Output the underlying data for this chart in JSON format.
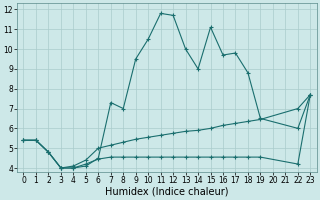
{
  "xlabel": "Humidex (Indice chaleur)",
  "bg_color": "#cde8e8",
  "grid_color": "#aacccc",
  "line_color": "#1a6e6e",
  "xlim": [
    -0.5,
    23.5
  ],
  "ylim": [
    3.8,
    12.3
  ],
  "yticks": [
    4,
    5,
    6,
    7,
    8,
    9,
    10,
    11,
    12
  ],
  "xticks": [
    0,
    1,
    2,
    3,
    4,
    5,
    6,
    7,
    8,
    9,
    10,
    11,
    12,
    13,
    14,
    15,
    16,
    17,
    18,
    19,
    20,
    21,
    22,
    23
  ],
  "line1_x": [
    0,
    1,
    2,
    3,
    4,
    5,
    6,
    7,
    8,
    9,
    10,
    11,
    12,
    13,
    14,
    15,
    16,
    17,
    18,
    19,
    22,
    23
  ],
  "line1_y": [
    5.4,
    5.4,
    4.8,
    4.0,
    4.0,
    4.1,
    4.5,
    7.3,
    7.0,
    9.5,
    10.5,
    11.8,
    11.7,
    10.0,
    9.0,
    11.1,
    9.7,
    9.8,
    8.8,
    6.5,
    6.0,
    7.7
  ],
  "line2_x": [
    0,
    1,
    2,
    3,
    4,
    5,
    6,
    7,
    8,
    9,
    10,
    11,
    12,
    13,
    14,
    15,
    16,
    17,
    18,
    19,
    22,
    23
  ],
  "line2_y": [
    5.4,
    5.4,
    4.8,
    4.0,
    4.1,
    4.4,
    5.0,
    5.15,
    5.3,
    5.45,
    5.55,
    5.65,
    5.75,
    5.85,
    5.9,
    6.0,
    6.15,
    6.25,
    6.35,
    6.45,
    7.0,
    7.7
  ],
  "line3_x": [
    0,
    1,
    2,
    3,
    4,
    5,
    6,
    7,
    8,
    9,
    10,
    11,
    12,
    13,
    14,
    15,
    16,
    17,
    18,
    19,
    22,
    23
  ],
  "line3_y": [
    5.4,
    5.4,
    4.8,
    4.0,
    4.0,
    4.2,
    4.45,
    4.55,
    4.55,
    4.55,
    4.55,
    4.55,
    4.55,
    4.55,
    4.55,
    4.55,
    4.55,
    4.55,
    4.55,
    4.55,
    4.2,
    7.7
  ],
  "tickfontsize": 5.5,
  "xlabelfontsize": 7
}
